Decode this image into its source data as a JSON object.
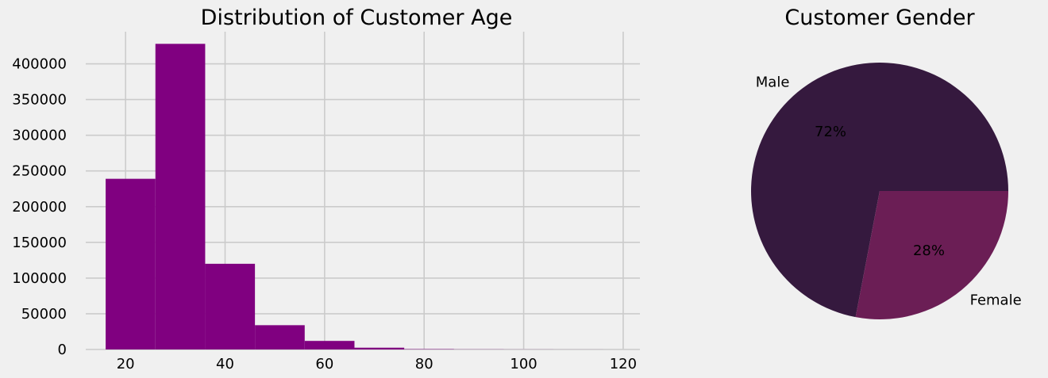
{
  "chart_data": [
    {
      "type": "bar",
      "title": "Distribution of Customer Age",
      "xlabel": "",
      "ylabel": "",
      "bin_edges": [
        16,
        26,
        36,
        46,
        56,
        66,
        76,
        86,
        96,
        106,
        116
      ],
      "values": [
        239000,
        428000,
        120000,
        34000,
        12000,
        2500,
        500,
        200,
        100,
        50
      ],
      "xlim": [
        12,
        124
      ],
      "ylim": [
        0,
        445000
      ],
      "xticks": [
        20,
        40,
        60,
        80,
        100,
        120
      ],
      "yticks": [
        0,
        50000,
        100000,
        150000,
        200000,
        250000,
        300000,
        350000,
        400000
      ],
      "grid": true,
      "bar_color": "#800080"
    },
    {
      "type": "pie",
      "title": "Customer Gender",
      "labels": [
        "Male",
        "Female"
      ],
      "values": [
        72,
        28
      ],
      "autopct": [
        "72%",
        "28%"
      ],
      "colors": [
        "#35193e",
        "#6b1e55"
      ]
    }
  ]
}
